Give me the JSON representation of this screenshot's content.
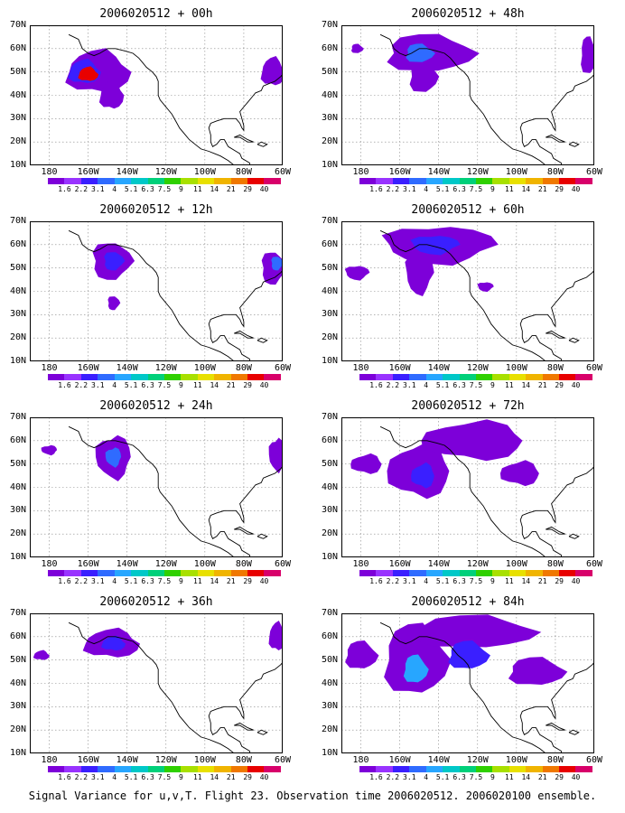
{
  "caption": "Signal Variance for u,v,T. Flight 23. Observation time 2006020512. 2006020100 ensemble.",
  "axes": {
    "y_labels": [
      "70N",
      "60N",
      "50N",
      "40N",
      "30N",
      "20N",
      "10N"
    ],
    "x_labels": [
      "180",
      "160W",
      "140W",
      "120W",
      "100W",
      "80W",
      "60W"
    ]
  },
  "colorbar": {
    "labels": [
      "1.6",
      "2.2",
      "3.1",
      "4",
      "5.1",
      "6.3",
      "7.5",
      "9",
      "11",
      "14",
      "21",
      "29",
      "40"
    ],
    "colors": [
      "#7d00d9",
      "#9933ff",
      "#3a1fff",
      "#2f6bff",
      "#27a6ff",
      "#00c8c8",
      "#00d07a",
      "#2fd000",
      "#a8e000",
      "#e8e000",
      "#f0b400",
      "#f07800",
      "#e80000",
      "#d8006a"
    ]
  },
  "panels": [
    {
      "title": "2006020512 + 00h"
    },
    {
      "title": "2006020512 + 48h"
    },
    {
      "title": "2006020512 + 12h"
    },
    {
      "title": "2006020512 + 60h"
    },
    {
      "title": "2006020512 + 24h"
    },
    {
      "title": "2006020512 + 72h"
    },
    {
      "title": "2006020512 + 36h"
    },
    {
      "title": "2006020512 + 84h"
    }
  ]
}
